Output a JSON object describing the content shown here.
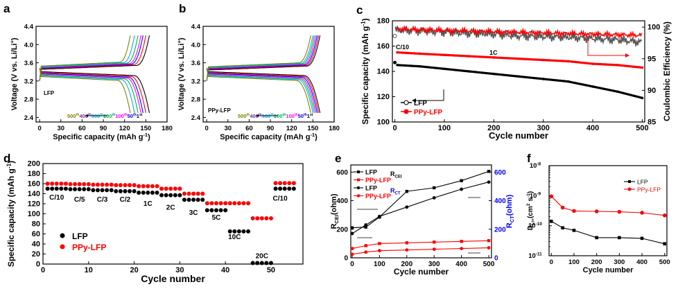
{
  "chart_data": [
    {
      "panel": "a",
      "type": "line",
      "panel_label": "a",
      "xlabel": "Specific capacity (mAh g",
      "xlabel_sup": "-1",
      "xlabel_end": ")",
      "ylabel": "Voltage (V vs. Li/Li",
      "ylabel_sup": "+",
      "ylabel_end": ")",
      "xlim": [
        -5,
        180
      ],
      "ylim": [
        2.3,
        4.4
      ],
      "xticks": [
        0,
        30,
        60,
        90,
        120,
        150,
        180
      ],
      "yticks": [
        2.4,
        2.8,
        3.2,
        3.6,
        4.0,
        4.4
      ],
      "xtick_labels": [
        "0",
        "30",
        "60",
        "90",
        "120",
        "150",
        "180"
      ],
      "ytick_labels": [
        "2.4",
        "2.8",
        "3.2",
        "3.6",
        "4.0",
        "4.4"
      ],
      "inner_label": "LFP",
      "series": [
        {
          "name": "1st",
          "color": "#000000",
          "capacity": 155
        },
        {
          "name": "50th",
          "color": "#ff0000",
          "capacity": 150
        },
        {
          "name": "100th",
          "color": "#0000ff",
          "capacity": 146
        },
        {
          "name": "200th",
          "color": "#ff00ff",
          "capacity": 143
        },
        {
          "name": "300th",
          "color": "#00b050",
          "capacity": 139
        },
        {
          "name": "400th",
          "color": "#00b0f0",
          "capacity": 134
        },
        {
          "name": "500th",
          "color": "#808000",
          "capacity": 128
        }
      ],
      "cycle_labels": [
        {
          "num": "500",
          "sup": "th",
          "color": "#808000"
        },
        {
          "num": "400",
          "sup": "th",
          "color": "#7030a0"
        },
        {
          "num": "300",
          "sup": "th",
          "color": "#00b0f0"
        },
        {
          "num": "200",
          "sup": "th",
          "color": "#00b050"
        },
        {
          "num": "100",
          "sup": "th",
          "color": "#ff00ff"
        },
        {
          "num": "50",
          "sup": "th",
          "color": "#0000ff"
        },
        {
          "num": "1",
          "sup": "st",
          "color": "#000000"
        }
      ],
      "note": "charge/discharge plateau near 3.4 V; faded cycles have lower capacity"
    },
    {
      "panel": "b",
      "type": "line",
      "panel_label": "b",
      "xlabel": "Specific capacity (mAh g",
      "xlabel_sup": "-1",
      "xlabel_end": ")",
      "ylabel": "Voltage (V vs. Li/Li",
      "ylabel_sup": "+",
      "ylabel_end": ")",
      "xlim": [
        -5,
        180
      ],
      "ylim": [
        2.3,
        4.4
      ],
      "xticks": [
        0,
        30,
        60,
        90,
        120,
        150,
        180
      ],
      "yticks": [
        2.4,
        2.8,
        3.2,
        3.6,
        4.0,
        4.4
      ],
      "xtick_labels": [
        "0",
        "30",
        "60",
        "90",
        "120",
        "150",
        "180"
      ],
      "ytick_labels": [
        "2.4",
        "2.8",
        "3.2",
        "3.6",
        "4.0",
        "4.4"
      ],
      "inner_label": "PPy-LFP",
      "series": [
        {
          "name": "1st",
          "color": "#000000",
          "capacity": 160
        },
        {
          "name": "50th",
          "color": "#ff0000",
          "capacity": 158
        },
        {
          "name": "100th",
          "color": "#0000ff",
          "capacity": 156
        },
        {
          "name": "200th",
          "color": "#ff00ff",
          "capacity": 154
        },
        {
          "name": "300th",
          "color": "#00b050",
          "capacity": 152
        },
        {
          "name": "400th",
          "color": "#00b0f0",
          "capacity": 150
        },
        {
          "name": "500th",
          "color": "#808000",
          "capacity": 147
        }
      ],
      "cycle_labels": [
        {
          "num": "500",
          "sup": "th",
          "color": "#808000"
        },
        {
          "num": "400",
          "sup": "th",
          "color": "#7030a0"
        },
        {
          "num": "300",
          "sup": "th",
          "color": "#00b0f0"
        },
        {
          "num": "200",
          "sup": "th",
          "color": "#00b050"
        },
        {
          "num": "100",
          "sup": "th",
          "color": "#ff00ff"
        },
        {
          "num": "50",
          "sup": "th",
          "color": "#0000ff"
        },
        {
          "num": "1",
          "sup": "st",
          "color": "#000000"
        }
      ]
    },
    {
      "panel": "c",
      "type": "scatter",
      "panel_label": "c",
      "xlabel": "Cycle number",
      "ylabel": "Specific capacity (mAh g",
      "ylabel_sup": "-1",
      "ylabel_end": ")",
      "y2label": "Coulombic Efficiency (%)",
      "xlim": [
        -5,
        505
      ],
      "ylim": [
        100,
        180
      ],
      "y2lim": [
        85,
        101
      ],
      "xticks": [
        0,
        100,
        200,
        300,
        400,
        500
      ],
      "yticks": [
        100,
        120,
        140,
        160,
        180
      ],
      "y2ticks": [
        85,
        90,
        95,
        100
      ],
      "xtick_labels": [
        "0",
        "100",
        "200",
        "300",
        "400",
        "500"
      ],
      "ytick_labels": [
        "100",
        "120",
        "140",
        "160",
        "180"
      ],
      "y2tick_labels": [
        "85",
        "90",
        "95",
        "100"
      ],
      "annotations": [
        "C/10",
        "1C"
      ],
      "legend": [
        "LFP",
        "PPy-LFP"
      ],
      "legend_position": "bottom-left",
      "series": [
        {
          "name": "LFP",
          "axis": "left",
          "color": "#000000",
          "x": [
            5,
            50,
            100,
            150,
            200,
            250,
            300,
            350,
            400,
            450,
            500
          ],
          "y": [
            145,
            144,
            142,
            140,
            138,
            136,
            134,
            132,
            128,
            124,
            119
          ]
        },
        {
          "name": "PPy-LFP",
          "axis": "left",
          "color": "#ff0000",
          "x": [
            5,
            50,
            100,
            150,
            200,
            250,
            300,
            350,
            400,
            450,
            500
          ],
          "y": [
            155,
            154,
            153,
            152,
            151,
            150,
            149,
            148,
            146,
            145,
            143
          ]
        },
        {
          "name": "LFP CE",
          "axis": "right",
          "color": "#555555",
          "x": [
            5,
            50,
            100,
            150,
            200,
            250,
            300,
            350,
            400,
            450,
            500
          ],
          "y": [
            99.5,
            99.4,
            99.2,
            99.0,
            98.9,
            98.6,
            98.5,
            98.4,
            98.2,
            98.0,
            97.6
          ]
        },
        {
          "name": "PPy-LFP CE",
          "axis": "right",
          "color": "#ff0000",
          "x": [
            5,
            50,
            100,
            150,
            200,
            250,
            300,
            350,
            400,
            450,
            500
          ],
          "y": [
            99.7,
            99.6,
            99.5,
            99.4,
            99.3,
            99.2,
            99.1,
            99.0,
            98.9,
            98.8,
            98.7
          ]
        }
      ]
    },
    {
      "panel": "d",
      "type": "scatter",
      "panel_label": "d",
      "xlabel": "Cycle number",
      "ylabel": "Specific capacity (mAh g",
      "ylabel_sup": "-1",
      "ylabel_end": ")",
      "xlim": [
        0,
        57
      ],
      "ylim": [
        0,
        200
      ],
      "xticks": [
        0,
        10,
        20,
        30,
        40,
        50
      ],
      "yticks": [
        0,
        20,
        40,
        60,
        80,
        100,
        120,
        140,
        160,
        180,
        200
      ],
      "xtick_labels": [
        "0",
        "10",
        "20",
        "30",
        "40",
        "50"
      ],
      "ytick_labels": [
        "0",
        "20",
        "40",
        "60",
        "80",
        "100",
        "120",
        "140",
        "160",
        "180",
        "200"
      ],
      "legend": [
        "LFP",
        "PPy-LFP"
      ],
      "legend_position": "bottom-left",
      "rate_labels": [
        {
          "text": "C/10",
          "x": 3,
          "y": 128
        },
        {
          "text": "C/5",
          "x": 8,
          "y": 124
        },
        {
          "text": "C/3",
          "x": 13,
          "y": 124
        },
        {
          "text": "C/2",
          "x": 18,
          "y": 124
        },
        {
          "text": "1C",
          "x": 23,
          "y": 116
        },
        {
          "text": "2C",
          "x": 28,
          "y": 108
        },
        {
          "text": "3C",
          "x": 33,
          "y": 98
        },
        {
          "text": "5C",
          "x": 38,
          "y": 88
        },
        {
          "text": "10C",
          "x": 42,
          "y": 50
        },
        {
          "text": "20C",
          "x": 48,
          "y": 12
        },
        {
          "text": "C/10",
          "x": 52,
          "y": 126
        }
      ],
      "series": [
        {
          "name": "LFP",
          "color": "#000000",
          "x": [
            1,
            2,
            3,
            4,
            5,
            6,
            7,
            8,
            9,
            10,
            11,
            12,
            13,
            14,
            15,
            16,
            17,
            18,
            19,
            20,
            21,
            22,
            23,
            24,
            25,
            26,
            27,
            28,
            29,
            30,
            31,
            32,
            33,
            34,
            35,
            36,
            37,
            38,
            39,
            40,
            41,
            42,
            43,
            44,
            45,
            46,
            47,
            48,
            49,
            50,
            51,
            52,
            53,
            54,
            55
          ],
          "y": [
            150,
            150,
            150,
            150,
            150,
            149,
            149,
            149,
            149,
            149,
            147,
            147,
            147,
            147,
            147,
            145,
            145,
            145,
            145,
            145,
            142,
            142,
            142,
            142,
            142,
            137,
            137,
            137,
            137,
            137,
            128,
            128,
            128,
            128,
            128,
            107,
            107,
            107,
            107,
            107,
            65,
            65,
            65,
            65,
            65,
            2,
            2,
            2,
            2,
            2,
            150,
            150,
            150,
            150,
            150
          ]
        },
        {
          "name": "PPy-LFP",
          "color": "#ff0000",
          "x": [
            1,
            2,
            3,
            4,
            5,
            6,
            7,
            8,
            9,
            10,
            11,
            12,
            13,
            14,
            15,
            16,
            17,
            18,
            19,
            20,
            21,
            22,
            23,
            24,
            25,
            26,
            27,
            28,
            29,
            30,
            31,
            32,
            33,
            34,
            35,
            36,
            37,
            38,
            39,
            40,
            41,
            42,
            43,
            44,
            45,
            46,
            47,
            48,
            49,
            50,
            51,
            52,
            53,
            54,
            55
          ],
          "y": [
            160,
            160,
            160,
            160,
            160,
            159,
            159,
            159,
            159,
            159,
            158,
            158,
            158,
            158,
            158,
            157,
            157,
            157,
            157,
            157,
            155,
            155,
            155,
            155,
            155,
            150,
            150,
            150,
            150,
            150,
            140,
            140,
            140,
            140,
            140,
            121,
            121,
            121,
            121,
            121,
            121,
            121,
            121,
            121,
            121,
            91,
            91,
            91,
            91,
            91,
            161,
            161,
            161,
            161,
            161
          ]
        }
      ]
    },
    {
      "panel": "e",
      "type": "line",
      "panel_label": "e",
      "xlabel": "Cycle number",
      "ylabel": "R",
      "ylabel_sub": "CEI",
      "ylabel_end": "(ohm)",
      "y2label": "R",
      "y2label_sub": "CT",
      "y2label_end": "(ohm)",
      "xlim": [
        -5,
        510
      ],
      "ylim": [
        0,
        650
      ],
      "y2lim": [
        0,
        650
      ],
      "xticks": [
        0,
        100,
        200,
        300,
        400,
        500
      ],
      "yticks": [
        0,
        200,
        400,
        600
      ],
      "y2ticks": [
        0,
        200,
        400,
        600
      ],
      "xtick_labels": [
        "0",
        "100",
        "200",
        "300",
        "400",
        "500"
      ],
      "ytick_labels": [
        "0",
        "200",
        "400",
        "600"
      ],
      "y2tick_labels": [
        "0",
        "200",
        "400",
        "600"
      ],
      "legend": [
        "LFP",
        "PPy-LFP",
        "LFP",
        "PPy-LFP"
      ],
      "legend_position": "top-left",
      "legend_group_labels": [
        {
          "main": "R",
          "sub": "CEI",
          "color": "#000000"
        },
        {
          "main": "R",
          "sub": "CT",
          "color": "#0000ff"
        }
      ],
      "series": [
        {
          "name": "LFP",
          "group": "R_CEI",
          "marker": "square",
          "color": "#000000",
          "axis": "left",
          "x": [
            0,
            50,
            100,
            200,
            300,
            400,
            500
          ],
          "y": [
            210,
            215,
            285,
            465,
            490,
            540,
            605
          ]
        },
        {
          "name": "PPy-LFP",
          "group": "R_CEI",
          "marker": "square",
          "color": "#ff0000",
          "axis": "left",
          "x": [
            0,
            50,
            100,
            200,
            300,
            400,
            500
          ],
          "y": [
            65,
            85,
            100,
            105,
            110,
            115,
            120
          ]
        },
        {
          "name": "LFP",
          "group": "R_CT",
          "marker": "circle",
          "color": "#000000",
          "axis": "right",
          "x": [
            0,
            50,
            100,
            200,
            300,
            400,
            500
          ],
          "y": [
            170,
            230,
            290,
            355,
            420,
            480,
            530
          ]
        },
        {
          "name": "PPy-LFP",
          "group": "R_CT",
          "marker": "circle",
          "color": "#ff0000",
          "axis": "right",
          "x": [
            0,
            50,
            100,
            200,
            300,
            400,
            500
          ],
          "y": [
            25,
            40,
            50,
            55,
            60,
            65,
            70
          ]
        }
      ]
    },
    {
      "panel": "f",
      "type": "line",
      "panel_label": "f",
      "xlabel": "Cycle number",
      "ylabel": "D",
      "ylabel_sub": "Li+",
      "ylabel_end": "(cm",
      "ylabel_sup2": "2",
      "ylabel_end2": " s",
      "ylabel_sup3": "-1",
      "ylabel_end3": ")",
      "yscale": "log",
      "xlim": [
        -10,
        510
      ],
      "ylim": [
        1e-11,
        1e-08
      ],
      "xticks": [
        0,
        100,
        200,
        300,
        400,
        500
      ],
      "xtick_labels": [
        "0",
        "100",
        "200",
        "300",
        "400",
        "500"
      ],
      "ytick_labels": [
        {
          "base": "10",
          "exp": "-8"
        },
        {
          "base": "10",
          "exp": "-9"
        },
        {
          "base": "10",
          "exp": "-10"
        },
        {
          "base": "10",
          "exp": "-11"
        }
      ],
      "legend": [
        "LFP",
        "PPy-LFP"
      ],
      "legend_position": "top-right",
      "series": [
        {
          "name": "LFP",
          "color": "#000000",
          "marker": "square",
          "x": [
            0,
            50,
            100,
            200,
            300,
            400,
            500
          ],
          "y": [
            1.4e-10,
            8.5e-11,
            7e-11,
            4e-11,
            4e-11,
            3.8e-11,
            2.5e-11
          ]
        },
        {
          "name": "PPy-LFP",
          "color": "#ff0000",
          "marker": "circle",
          "x": [
            0,
            50,
            100,
            200,
            300,
            400,
            500
          ],
          "y": [
            9.5e-10,
            4e-10,
            3.1e-10,
            3e-10,
            2.9e-10,
            2.7e-10,
            2.2e-10
          ]
        }
      ]
    }
  ]
}
